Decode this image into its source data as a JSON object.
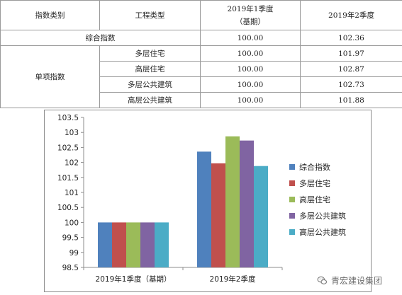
{
  "table": {
    "headers": [
      "指数类别",
      "工程类型",
      "2019年1季度\n（基期）",
      "2019年2季度"
    ],
    "composite": {
      "category": "综合指数",
      "q1": "100.00",
      "q2": "102.36"
    },
    "single_category": "单项指数",
    "rows": [
      {
        "type": "多层住宅",
        "q1": "100.00",
        "q2": "101.97"
      },
      {
        "type": "高层住宅",
        "q1": "100.00",
        "q2": "102.87"
      },
      {
        "type": "多层公共建筑",
        "q1": "100.00",
        "q2": "102.73"
      },
      {
        "type": "高层公共建筑",
        "q1": "100.00",
        "q2": "101.88"
      }
    ]
  },
  "chart_data": {
    "type": "bar",
    "categories": [
      "2019年1季度（基期）",
      "2019年2季度"
    ],
    "series": [
      {
        "name": "综合指数",
        "values": [
          100,
          102.36
        ],
        "color": "#4f81bd"
      },
      {
        "name": "多层住宅",
        "values": [
          100,
          101.97
        ],
        "color": "#c0504d"
      },
      {
        "name": "高层住宅",
        "values": [
          100,
          102.87
        ],
        "color": "#9bbb59"
      },
      {
        "name": "多层公共建筑",
        "values": [
          100,
          102.73
        ],
        "color": "#8064a2"
      },
      {
        "name": "高层公共建筑",
        "values": [
          100,
          101.88
        ],
        "color": "#4bacc6"
      }
    ],
    "yticks": [
      "98.5",
      "99",
      "99.5",
      "100",
      "100.5",
      "101",
      "101.5",
      "102",
      "102.5",
      "103",
      "103.5"
    ],
    "ylim": [
      98.5,
      103.5
    ],
    "grid": false,
    "legend_position": "right"
  },
  "watermark": {
    "text": "青宏建设集团",
    "icon": "wechat-icon"
  }
}
